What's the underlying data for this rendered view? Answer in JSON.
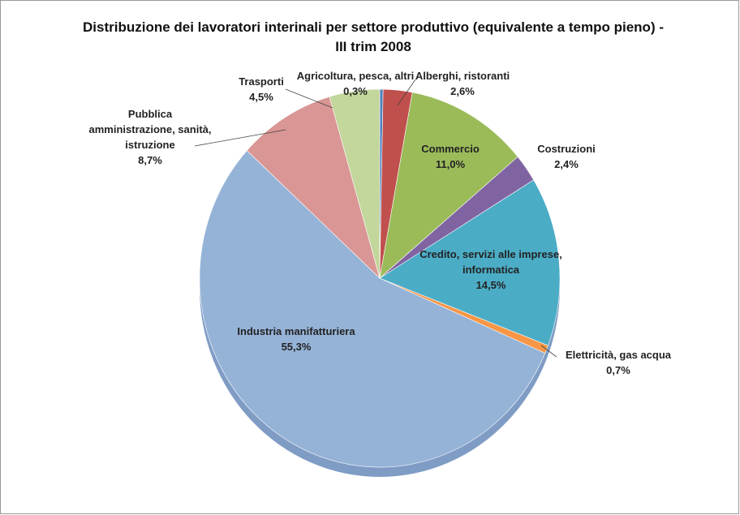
{
  "chart_data": {
    "type": "pie",
    "title": "Distribuzione dei lavoratori interinali per settore  produttivo (equivalente a tempo pieno) - III trim 2008",
    "categories": [
      "Agricoltura, pesca, altri",
      "Alberghi, ristoranti",
      "Commercio",
      "Costruzioni",
      "Credito, servizi alle imprese, informatica",
      "Elettricità, gas acqua",
      "Industria manifatturiera",
      "Pubblica amministrazione, sanità, istruzione",
      "Trasporti"
    ],
    "values": [
      0.3,
      2.6,
      11.0,
      2.4,
      14.5,
      0.7,
      55.3,
      8.7,
      4.5
    ],
    "value_labels": [
      "0,3%",
      "2,6%",
      "11,0%",
      "2,4%",
      "14,5%",
      "0,7%",
      "55,3%",
      "8,7%",
      "4,5%"
    ],
    "colors": [
      "#4f81bd",
      "#c0504d",
      "#9bbb59",
      "#8064a2",
      "#4bacc6",
      "#f79646",
      "#95b3d7",
      "#d99694",
      "#c3d69b"
    ]
  }
}
